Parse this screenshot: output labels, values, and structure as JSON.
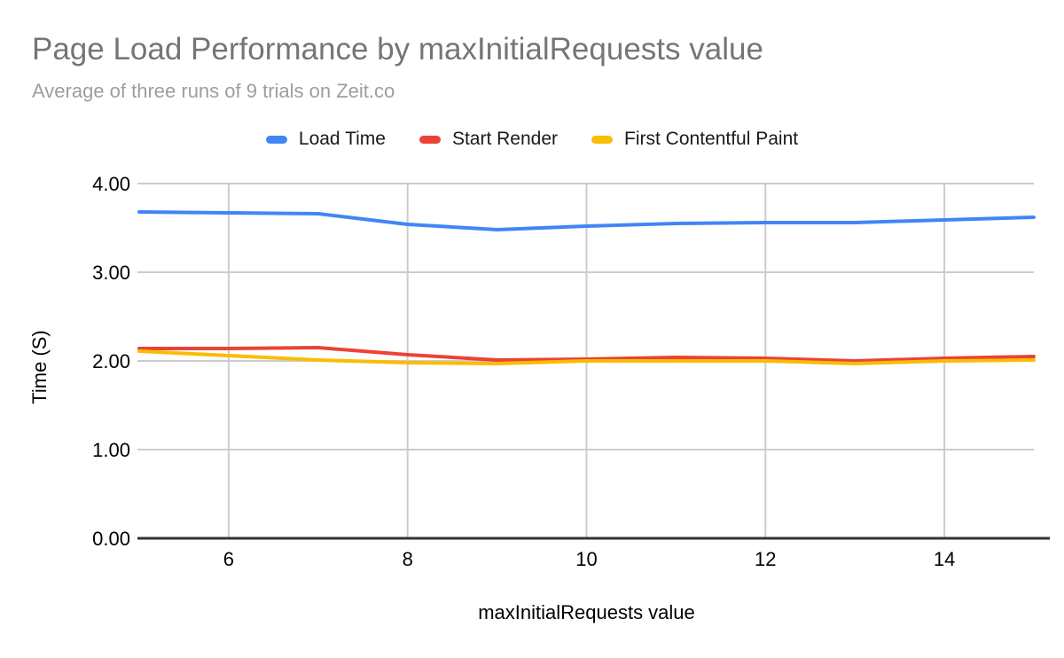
{
  "title": "Page Load Performance by maxInitialRequests value",
  "subtitle": "Average of three runs of 9 trials on Zeit.co",
  "colors": {
    "title_text": "#757575",
    "subtitle_text": "#9e9e9e",
    "gridline": "#cccccc",
    "axis_line": "#333333",
    "label_text": "#000000"
  },
  "chart_data": {
    "type": "line",
    "title": "Page Load Performance by maxInitialRequests value",
    "subtitle": "Average of three runs of 9 trials on Zeit.co",
    "xlabel": "maxInitialRequests value",
    "ylabel": "Time (S)",
    "xlim": [
      5,
      15
    ],
    "ylim": [
      0,
      4
    ],
    "grid": true,
    "legend_position": "top",
    "x": [
      5,
      6,
      7,
      8,
      9,
      10,
      11,
      12,
      13,
      14,
      15
    ],
    "x_tick_labels": [
      "6",
      "8",
      "10",
      "12",
      "14"
    ],
    "x_tick_values": [
      6,
      8,
      10,
      12,
      14
    ],
    "y_tick_labels": [
      "0.00",
      "1.00",
      "2.00",
      "3.00",
      "4.00"
    ],
    "y_tick_values": [
      0,
      1,
      2,
      3,
      4
    ],
    "series": [
      {
        "name": "Load Time",
        "color": "#4285f4",
        "values": [
          3.68,
          3.67,
          3.66,
          3.54,
          3.48,
          3.52,
          3.55,
          3.56,
          3.56,
          3.59,
          3.62
        ]
      },
      {
        "name": "Start Render",
        "color": "#ea4335",
        "values": [
          2.14,
          2.14,
          2.15,
          2.07,
          2.01,
          2.02,
          2.04,
          2.03,
          2.0,
          2.03,
          2.05
        ]
      },
      {
        "name": "First Contentful Paint",
        "color": "#fbbc04",
        "values": [
          2.11,
          2.06,
          2.01,
          1.98,
          1.97,
          2.0,
          2.0,
          2.0,
          1.97,
          2.0,
          2.01
        ]
      }
    ]
  }
}
